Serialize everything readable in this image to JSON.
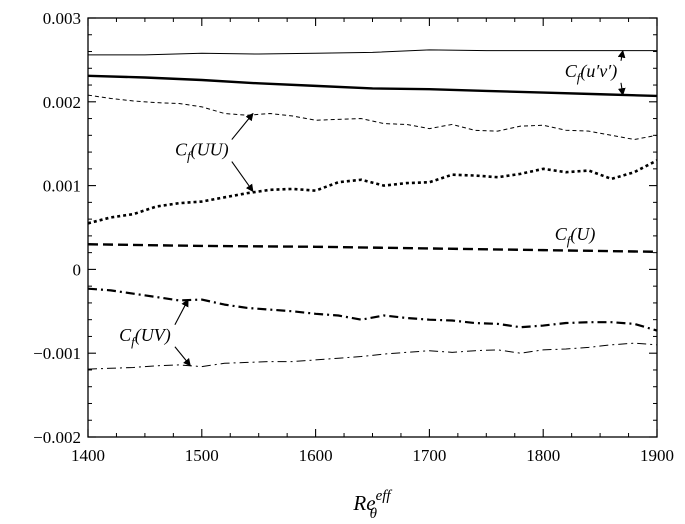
{
  "chart_data": {
    "type": "line",
    "xlabel": "Re_θ^eff",
    "xlim": [
      1400,
      1900
    ],
    "ylim": [
      -0.002,
      0.003
    ],
    "x_ticks": [
      "1400",
      "1500",
      "1600",
      "1700",
      "1800",
      "1900"
    ],
    "y_ticks": [
      "−0.002",
      "−0.001",
      "0",
      "0.001",
      "0.002",
      "0.003"
    ],
    "grid": false,
    "legend": "none",
    "series": [
      {
        "id": "uv-upper-thin",
        "style": "solid-thin",
        "x": [
          1400,
          1450,
          1500,
          1550,
          1600,
          1650,
          1700,
          1750,
          1800,
          1850,
          1900
        ],
        "y": [
          0.00256,
          0.00256,
          0.00258,
          0.00257,
          0.00258,
          0.00259,
          0.00262,
          0.00261,
          0.00261,
          0.00261,
          0.00261
        ]
      },
      {
        "id": "uv-lower-thick",
        "style": "solid-thick",
        "x": [
          1400,
          1450,
          1500,
          1550,
          1600,
          1650,
          1700,
          1750,
          1800,
          1850,
          1900
        ],
        "y": [
          0.00231,
          0.00229,
          0.00226,
          0.00222,
          0.00219,
          0.00216,
          0.00215,
          0.00213,
          0.00211,
          0.00209,
          0.00207
        ]
      },
      {
        "id": "uu-upper-thin",
        "style": "dashed-thin",
        "x": [
          1400,
          1420,
          1440,
          1460,
          1480,
          1500,
          1520,
          1540,
          1560,
          1580,
          1600,
          1620,
          1640,
          1660,
          1680,
          1700,
          1720,
          1740,
          1760,
          1780,
          1800,
          1820,
          1840,
          1860,
          1880,
          1900
        ],
        "y": [
          0.00208,
          0.00204,
          0.00201,
          0.00199,
          0.00198,
          0.00194,
          0.00186,
          0.00184,
          0.00186,
          0.00183,
          0.00178,
          0.00179,
          0.0018,
          0.00174,
          0.00173,
          0.00168,
          0.00173,
          0.00166,
          0.00165,
          0.00171,
          0.00172,
          0.00166,
          0.00165,
          0.0016,
          0.00155,
          0.0016
        ]
      },
      {
        "id": "uu-lower-thick",
        "style": "dotted-thick",
        "x": [
          1400,
          1420,
          1440,
          1460,
          1480,
          1500,
          1520,
          1540,
          1560,
          1580,
          1600,
          1620,
          1640,
          1660,
          1680,
          1700,
          1720,
          1740,
          1760,
          1780,
          1800,
          1820,
          1840,
          1860,
          1880,
          1900
        ],
        "y": [
          0.00055,
          0.00062,
          0.00066,
          0.00075,
          0.00079,
          0.00081,
          0.00086,
          0.00091,
          0.00095,
          0.00096,
          0.00094,
          0.00104,
          0.00107,
          0.001,
          0.00103,
          0.00104,
          0.00113,
          0.00112,
          0.0011,
          0.00114,
          0.0012,
          0.00116,
          0.00118,
          0.00108,
          0.00116,
          0.0013
        ]
      },
      {
        "id": "u-dashed",
        "style": "dashed-thick",
        "x": [
          1400,
          1500,
          1600,
          1700,
          1800,
          1900
        ],
        "y": [
          0.0003,
          0.00028,
          0.00027,
          0.00025,
          0.00023,
          0.00021
        ]
      },
      {
        "id": "uv-upper-dashdot",
        "style": "dashdot-thick",
        "x": [
          1400,
          1420,
          1440,
          1460,
          1480,
          1500,
          1520,
          1540,
          1560,
          1580,
          1600,
          1620,
          1640,
          1660,
          1680,
          1700,
          1720,
          1740,
          1760,
          1780,
          1800,
          1820,
          1840,
          1860,
          1880,
          1900
        ],
        "y": [
          -0.00023,
          -0.00025,
          -0.00029,
          -0.00033,
          -0.00037,
          -0.00036,
          -0.00042,
          -0.00046,
          -0.00048,
          -0.0005,
          -0.00053,
          -0.00055,
          -0.0006,
          -0.00055,
          -0.00058,
          -0.0006,
          -0.00061,
          -0.00064,
          -0.00065,
          -0.00069,
          -0.00067,
          -0.00064,
          -0.00063,
          -0.00063,
          -0.00065,
          -0.00073
        ]
      },
      {
        "id": "uv-lower-dashdot",
        "style": "dashdot-thin",
        "x": [
          1400,
          1420,
          1440,
          1460,
          1480,
          1500,
          1520,
          1540,
          1560,
          1580,
          1600,
          1620,
          1640,
          1660,
          1680,
          1700,
          1720,
          1740,
          1760,
          1780,
          1800,
          1820,
          1840,
          1860,
          1880,
          1900
        ],
        "y": [
          -0.00119,
          -0.00118,
          -0.00117,
          -0.00115,
          -0.00114,
          -0.00116,
          -0.00112,
          -0.00111,
          -0.0011,
          -0.0011,
          -0.00108,
          -0.00106,
          -0.00104,
          -0.00101,
          -0.00099,
          -0.00097,
          -0.00099,
          -0.00097,
          -0.00096,
          -0.001,
          -0.00096,
          -0.00095,
          -0.00093,
          -0.0009,
          -0.00088,
          -0.0009
        ]
      }
    ],
    "annotations": [
      {
        "id": "cf-uv-prime",
        "label": "C_f(u′v′)",
        "text_at": [
          1842,
          0.00237
        ],
        "arrows_to": [
          [
            1870,
            0.00261
          ],
          [
            1870,
            0.00208
          ]
        ]
      },
      {
        "id": "cf-uu",
        "label": "C_f(UU)",
        "text_at": [
          1500,
          0.00143
        ],
        "arrows_to": [
          [
            1545,
            0.00186
          ],
          [
            1545,
            0.00093
          ]
        ]
      },
      {
        "id": "cf-u",
        "label": "C_f(U)",
        "text_at": [
          1828,
          0.00042
        ],
        "arrows_to": []
      },
      {
        "id": "cf-uv",
        "label": "C_f(UV)",
        "text_at": [
          1450,
          -0.00078
        ],
        "arrows_to": [
          [
            1488,
            -0.00036
          ],
          [
            1490,
            -0.00115
          ]
        ]
      }
    ]
  }
}
